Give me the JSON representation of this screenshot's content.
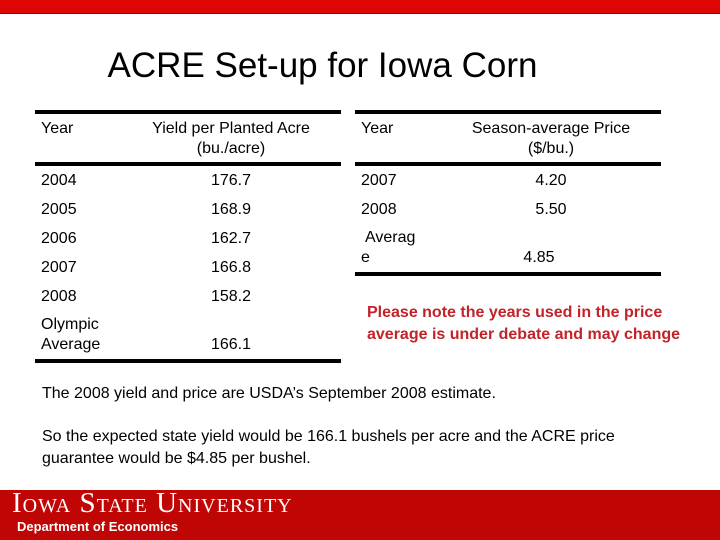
{
  "title": "ACRE Set-up for Iowa Corn",
  "yield_table": {
    "col1_header": "Year",
    "col2_header": "Yield per Planted Acre",
    "col2_subheader": "(bu./acre)",
    "rows": [
      {
        "year": "2004",
        "value": "176.7"
      },
      {
        "year": "2005",
        "value": "168.9"
      },
      {
        "year": "2006",
        "value": "162.7"
      },
      {
        "year": "2007",
        "value": "166.8"
      },
      {
        "year": "2008",
        "value": "158.2"
      },
      {
        "year": "Olympic Average",
        "value": "166.1"
      }
    ]
  },
  "price_table": {
    "col1_header": "Year",
    "col2_header": "Season-average Price",
    "col2_subheader": "($/bu.)",
    "rows": [
      {
        "year": "2007",
        "value": "4.20"
      },
      {
        "year": "2008",
        "value": "5.50"
      },
      {
        "year": "Average",
        "value": "4.85"
      }
    ]
  },
  "note": "Please note the years used in the price average is under debate and may change",
  "body": {
    "paragraph1": "The 2008 yield and price are USDA’s September 2008 estimate.",
    "paragraph2": "So the expected state yield would be 166.1 bushels per acre and the ACRE price guarantee would be $4.85 per bushel."
  },
  "footer": {
    "university": "Iowa State University",
    "department": "Department of Economics"
  },
  "colors": {
    "top_bar": "#e00505",
    "footer_bar": "#c00505",
    "note_text": "#c22328"
  }
}
